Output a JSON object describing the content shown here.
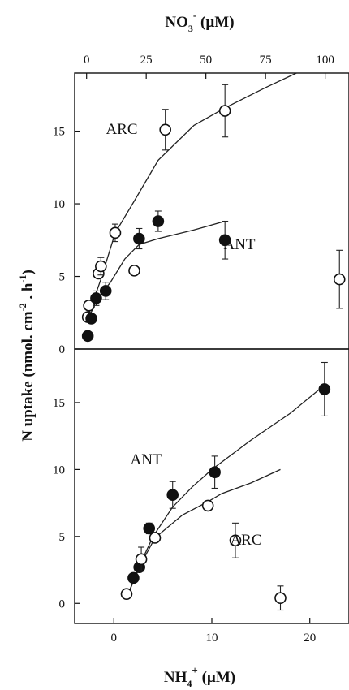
{
  "chart_data": [
    {
      "type": "scatter",
      "panel": "top",
      "x_axis_position": "top",
      "xlabel": "NO3- (µM)",
      "xlabel_main": "NO",
      "xlabel_sub": "3",
      "xlabel_sup": "-",
      "xlabel_unit": "(µM)",
      "ylabel": "N uptake (nmol. cm-2. h-1)",
      "ylabel_main": "N uptake (nmol. cm",
      "ylabel_sup1": "-2",
      "ylabel_mid": " . h",
      "ylabel_sup2": "-1",
      "ylabel_end": ")",
      "xlim": [
        -5,
        110
      ],
      "ylim": [
        0,
        19
      ],
      "xticks": [
        0,
        25,
        50,
        75,
        100
      ],
      "yticks": [
        0,
        5,
        10,
        15
      ],
      "series": [
        {
          "name": "ARC",
          "marker": "open-circle",
          "points": [
            {
              "x": 0.5,
              "y": 2.2,
              "err": 0
            },
            {
              "x": 1.0,
              "y": 3.0,
              "err": 0
            },
            {
              "x": 5.0,
              "y": 5.2,
              "err": 0.3
            },
            {
              "x": 6.0,
              "y": 5.7,
              "err": 0.6
            },
            {
              "x": 12.0,
              "y": 8.0,
              "err": 0.6
            },
            {
              "x": 20.0,
              "y": 5.4,
              "err": 0
            },
            {
              "x": 33.0,
              "y": 15.1,
              "err": 1.4
            },
            {
              "x": 58.0,
              "y": 16.4,
              "err": 1.8
            },
            {
              "x": 106.0,
              "y": 4.8,
              "err": 2.0
            }
          ],
          "fit": [
            [
              0.5,
              2.2
            ],
            [
              6,
              4.8
            ],
            [
              12,
              8.0
            ],
            [
              20,
              10.2
            ],
            [
              30,
              13.0
            ],
            [
              45,
              15.4
            ],
            [
              58,
              16.6
            ],
            [
              75,
              18.0
            ],
            [
              88,
              19.0
            ]
          ]
        },
        {
          "name": "ANT",
          "marker": "filled-circle",
          "points": [
            {
              "x": 0.5,
              "y": 0.9,
              "err": 0
            },
            {
              "x": 2.0,
              "y": 2.1,
              "err": 0
            },
            {
              "x": 4.0,
              "y": 3.5,
              "err": 0.5
            },
            {
              "x": 8.0,
              "y": 4.0,
              "err": 0.6
            },
            {
              "x": 22.0,
              "y": 7.6,
              "err": 0.7
            },
            {
              "x": 30.0,
              "y": 8.8,
              "err": 0.7
            },
            {
              "x": 58.0,
              "y": 7.5,
              "err": 1.3
            }
          ],
          "fit": [
            [
              0.5,
              2.0
            ],
            [
              4,
              3.3
            ],
            [
              10,
              4.6
            ],
            [
              16,
              6.2
            ],
            [
              22,
              7.2
            ],
            [
              30,
              7.6
            ],
            [
              45,
              8.2
            ],
            [
              58,
              8.8
            ]
          ]
        }
      ],
      "annotations": [
        {
          "text": "ARC",
          "series": "ARC"
        },
        {
          "text": "ANT",
          "series": "ANT"
        }
      ]
    },
    {
      "type": "scatter",
      "panel": "bottom",
      "x_axis_position": "bottom",
      "xlabel": "NH4+ (µM)",
      "xlabel_main": "NH",
      "xlabel_sub": "4",
      "xlabel_sup": "+",
      "xlabel_unit": "(µM)",
      "xlim": [
        -4,
        24
      ],
      "ylim": [
        -1.5,
        19
      ],
      "xticks": [
        0,
        10,
        20
      ],
      "yticks": [
        0,
        5,
        10,
        15
      ],
      "series": [
        {
          "name": "ANT",
          "marker": "filled-circle",
          "points": [
            {
              "x": 2.0,
              "y": 1.9,
              "err": 0
            },
            {
              "x": 2.6,
              "y": 2.7,
              "err": 0
            },
            {
              "x": 3.6,
              "y": 5.6,
              "err": 0.4
            },
            {
              "x": 6.0,
              "y": 8.1,
              "err": 1.0
            },
            {
              "x": 10.3,
              "y": 9.8,
              "err": 1.2
            },
            {
              "x": 21.5,
              "y": 16.0,
              "err": 2.0
            }
          ],
          "fit": [
            [
              1.4,
              0.6
            ],
            [
              2.6,
              2.8
            ],
            [
              4.0,
              5.0
            ],
            [
              6.0,
              7.2
            ],
            [
              8.0,
              8.7
            ],
            [
              10.0,
              10.0
            ],
            [
              14.0,
              12.2
            ],
            [
              18.0,
              14.2
            ],
            [
              21.5,
              16.3
            ]
          ]
        },
        {
          "name": "ARC",
          "marker": "open-circle",
          "points": [
            {
              "x": 1.3,
              "y": 0.7,
              "err": 0
            },
            {
              "x": 2.8,
              "y": 3.3,
              "err": 0.9
            },
            {
              "x": 4.2,
              "y": 4.9,
              "err": 0
            },
            {
              "x": 9.6,
              "y": 7.3,
              "err": 0
            },
            {
              "x": 12.4,
              "y": 4.7,
              "err": 1.3
            },
            {
              "x": 17.0,
              "y": 0.4,
              "err": 0.9
            }
          ],
          "fit": [
            [
              1.4,
              0.6
            ],
            [
              2.8,
              3.0
            ],
            [
              4.2,
              4.9
            ],
            [
              7.0,
              6.6
            ],
            [
              9.6,
              7.6
            ],
            [
              11.0,
              8.2
            ],
            [
              14.0,
              9.0
            ],
            [
              17.0,
              10.0
            ]
          ]
        }
      ],
      "annotations": [
        {
          "text": "ANT",
          "series": "ANT"
        },
        {
          "text": "ARC",
          "series": "ARC"
        }
      ]
    }
  ]
}
